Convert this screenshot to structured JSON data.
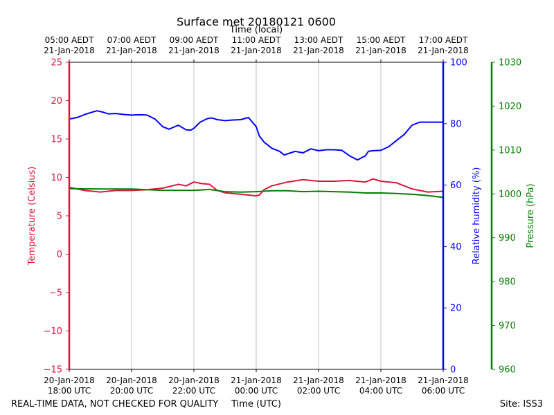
{
  "chart_data": {
    "type": "line",
    "title": "Surface met 20180121 0600",
    "top_axis_title": "Time (local)",
    "xlabel": "Time (UTC)",
    "x_ticks_utc": [
      {
        "t": 0,
        "line1": "20-Jan-2018",
        "line2": "18:00 UTC"
      },
      {
        "t": 2,
        "line1": "20-Jan-2018",
        "line2": "20:00 UTC"
      },
      {
        "t": 4,
        "line1": "20-Jan-2018",
        "line2": "22:00 UTC"
      },
      {
        "t": 6,
        "line1": "21-Jan-2018",
        "line2": "00:00 UTC"
      },
      {
        "t": 8,
        "line1": "21-Jan-2018",
        "line2": "02:00 UTC"
      },
      {
        "t": 10,
        "line1": "21-Jan-2018",
        "line2": "04:00 UTC"
      },
      {
        "t": 12,
        "line1": "21-Jan-2018",
        "line2": "06:00 UTC"
      }
    ],
    "x_ticks_local": [
      {
        "t": 0,
        "line1": "05:00 AEDT",
        "line2": "21-Jan-2018"
      },
      {
        "t": 2,
        "line1": "07:00 AEDT",
        "line2": "21-Jan-2018"
      },
      {
        "t": 4,
        "line1": "09:00 AEDT",
        "line2": "21-Jan-2018"
      },
      {
        "t": 6,
        "line1": "11:00 AEDT",
        "line2": "21-Jan-2018"
      },
      {
        "t": 8,
        "line1": "13:00 AEDT",
        "line2": "21-Jan-2018"
      },
      {
        "t": 10,
        "line1": "15:00 AEDT",
        "line2": "21-Jan-2018"
      },
      {
        "t": 12,
        "line1": "17:00 AEDT",
        "line2": "21-Jan-2018"
      }
    ],
    "xlim": [
      0,
      12
    ],
    "grid": "vertical",
    "axes": [
      {
        "key": "temp",
        "label": "Temperature (Celsius)",
        "color": "#dc143c",
        "ylim": [
          -15,
          25
        ],
        "ticks": [
          -15,
          -10,
          -5,
          0,
          5,
          10,
          15,
          20,
          25
        ],
        "tick_labels": [
          "−15",
          "−10",
          "−5",
          "0",
          "5",
          "10",
          "15",
          "20",
          "25"
        ]
      },
      {
        "key": "rh",
        "label": "Relative humidity (%)",
        "color": "#0000ff",
        "ylim": [
          0,
          100
        ],
        "ticks": [
          0,
          20,
          40,
          60,
          80,
          100
        ],
        "tick_labels": [
          "0",
          "20",
          "40",
          "60",
          "80",
          "100"
        ]
      },
      {
        "key": "pres",
        "label": "Pressure (hPa)",
        "color": "#008000",
        "ylim": [
          960,
          1030
        ],
        "ticks": [
          960,
          970,
          980,
          990,
          1000,
          1010,
          1020,
          1030
        ],
        "tick_labels": [
          "960",
          "970",
          "980",
          "990",
          "1000",
          "1010",
          "1020",
          "1030"
        ]
      }
    ],
    "series": [
      {
        "axis": "rh",
        "color": "#0000ff",
        "x": [
          0,
          0.25,
          0.5,
          0.75,
          0.9,
          1.1,
          1.25,
          1.5,
          1.75,
          2,
          2.25,
          2.5,
          2.75,
          3,
          3.2,
          3.5,
          3.75,
          3.9,
          4,
          4.2,
          4.4,
          4.5,
          4.6,
          4.75,
          5,
          5.25,
          5.5,
          5.75,
          6,
          6.1,
          6.25,
          6.5,
          6.75,
          6.9,
          7.1,
          7.25,
          7.5,
          7.75,
          8,
          8.25,
          8.5,
          8.75,
          9,
          9.25,
          9.5,
          9.6,
          9.75,
          10,
          10.25,
          10.5,
          10.75,
          11,
          11.25,
          11.5,
          11.75,
          12
        ],
        "y": [
          81.5,
          82,
          83,
          83.8,
          84.2,
          83.7,
          83.2,
          83.3,
          83,
          82.8,
          82.9,
          82.8,
          81.5,
          79,
          78.2,
          79.5,
          78,
          77.9,
          78.5,
          80.5,
          81.5,
          81.8,
          81.8,
          81.3,
          81,
          81.2,
          81.3,
          82,
          79,
          76,
          74,
          72,
          71,
          69.8,
          70.5,
          71,
          70.5,
          71.8,
          71.2,
          71.5,
          71.5,
          71.3,
          69.5,
          68.2,
          69.5,
          71,
          71.2,
          71.3,
          72.5,
          74.5,
          76.5,
          79.5,
          80.5,
          80.5,
          80.5,
          80.5
        ]
      },
      {
        "axis": "temp",
        "color": "#dc143c",
        "x": [
          0,
          0.5,
          1,
          1.5,
          2,
          2.5,
          3,
          3.5,
          3.75,
          4,
          4.25,
          4.5,
          4.75,
          5,
          5.5,
          5.75,
          6,
          6.1,
          6.25,
          6.5,
          7,
          7.5,
          8,
          8.5,
          9,
          9.5,
          9.75,
          10,
          10.5,
          11,
          11.5,
          12
        ],
        "y": [
          8.7,
          8.3,
          8.1,
          8.3,
          8.3,
          8.4,
          8.6,
          9.1,
          8.9,
          9.4,
          9.2,
          9.1,
          8.3,
          8.0,
          7.8,
          7.7,
          7.6,
          7.7,
          8.4,
          8.9,
          9.4,
          9.7,
          9.5,
          9.5,
          9.6,
          9.4,
          9.8,
          9.5,
          9.3,
          8.5,
          8.1,
          8.2
        ]
      },
      {
        "axis": "pres",
        "color": "#008000",
        "x": [
          0,
          1,
          2,
          3,
          4,
          4.5,
          5,
          5.5,
          6,
          6.5,
          7,
          7.5,
          8,
          8.5,
          9,
          9.5,
          10,
          10.5,
          11,
          11.5,
          12
        ],
        "y": [
          1001.2,
          1001.1,
          1001.1,
          1000.8,
          1000.8,
          1001,
          1000.5,
          1000.4,
          1000.5,
          1000.7,
          1000.7,
          1000.5,
          1000.6,
          1000.5,
          1000.4,
          1000.2,
          1000.2,
          1000.1,
          999.9,
          999.6,
          999.2
        ]
      }
    ]
  },
  "footer": {
    "disclaimer": "REAL-TIME DATA, NOT CHECKED FOR QUALITY",
    "site": "Site: ISS3"
  }
}
